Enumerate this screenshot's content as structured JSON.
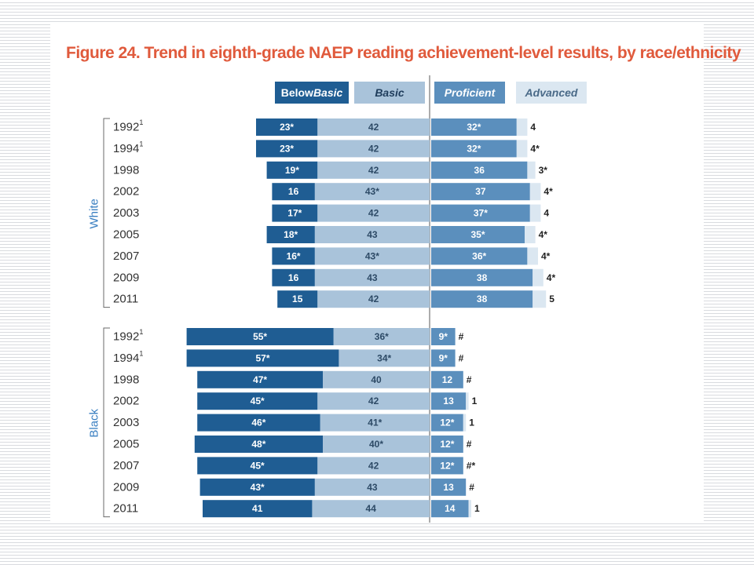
{
  "title": {
    "figure_number": "Figure 24.",
    "text": "Trend in eighth-grade NAEP reading achievement-level results, by race/ethnicity"
  },
  "legend": [
    {
      "key": "below_basic",
      "plain": "Below ",
      "italic": "Basic",
      "bg": "#1f5d93",
      "fg": "#ffffff"
    },
    {
      "key": "basic",
      "plain": "",
      "italic": "Basic",
      "bg": "#a9c3da",
      "fg": "#1f3d5c"
    },
    {
      "key": "proficient",
      "plain": "",
      "italic": "Proficient",
      "bg": "#5b8fbd",
      "fg": "#ffffff"
    },
    {
      "key": "advanced",
      "plain": "",
      "italic": "Advanced",
      "bg": "#dbe7f1",
      "fg": "#4a6a88"
    }
  ],
  "colors": {
    "below_basic": "#1f5d93",
    "basic": "#a9c3da",
    "proficient": "#5b8fbd",
    "advanced": "#dbe7f1",
    "group_label": "#3a7fc1",
    "title": "#e05a3c"
  },
  "chart_data": {
    "type": "bar",
    "orientation": "horizontal",
    "stacked": "diverging",
    "title": "Trend in eighth-grade NAEP reading achievement-level results, by race/ethnicity",
    "series_names": [
      "Below Basic",
      "Basic",
      "Proficient",
      "Advanced"
    ],
    "groups": [
      {
        "name": "White",
        "rows": [
          {
            "year": "1992",
            "sup": "1",
            "below": 23,
            "below_label": "23*",
            "basic": 42,
            "basic_label": "42",
            "prof": 32,
            "prof_label": "32*",
            "adv": 4,
            "adv_label": "4"
          },
          {
            "year": "1994",
            "sup": "1",
            "below": 23,
            "below_label": "23*",
            "basic": 42,
            "basic_label": "42",
            "prof": 32,
            "prof_label": "32*",
            "adv": 4,
            "adv_label": "4*"
          },
          {
            "year": "1998",
            "sup": "",
            "below": 19,
            "below_label": "19*",
            "basic": 42,
            "basic_label": "42",
            "prof": 36,
            "prof_label": "36",
            "adv": 3,
            "adv_label": "3*"
          },
          {
            "year": "2002",
            "sup": "",
            "below": 16,
            "below_label": "16",
            "basic": 43,
            "basic_label": "43*",
            "prof": 37,
            "prof_label": "37",
            "adv": 4,
            "adv_label": "4*"
          },
          {
            "year": "2003",
            "sup": "",
            "below": 17,
            "below_label": "17*",
            "basic": 42,
            "basic_label": "42",
            "prof": 37,
            "prof_label": "37*",
            "adv": 4,
            "adv_label": "4"
          },
          {
            "year": "2005",
            "sup": "",
            "below": 18,
            "below_label": "18*",
            "basic": 43,
            "basic_label": "43",
            "prof": 35,
            "prof_label": "35*",
            "adv": 4,
            "adv_label": "4*"
          },
          {
            "year": "2007",
            "sup": "",
            "below": 16,
            "below_label": "16*",
            "basic": 43,
            "basic_label": "43*",
            "prof": 36,
            "prof_label": "36*",
            "adv": 4,
            "adv_label": "4*"
          },
          {
            "year": "2009",
            "sup": "",
            "below": 16,
            "below_label": "16",
            "basic": 43,
            "basic_label": "43",
            "prof": 38,
            "prof_label": "38",
            "adv": 4,
            "adv_label": "4*"
          },
          {
            "year": "2011",
            "sup": "",
            "below": 15,
            "below_label": "15",
            "basic": 42,
            "basic_label": "42",
            "prof": 38,
            "prof_label": "38",
            "adv": 5,
            "adv_label": "5"
          }
        ]
      },
      {
        "name": "Black",
        "rows": [
          {
            "year": "1992",
            "sup": "1",
            "below": 55,
            "below_label": "55*",
            "basic": 36,
            "basic_label": "36*",
            "prof": 9,
            "prof_label": "9*",
            "adv": 0,
            "adv_label": "#"
          },
          {
            "year": "1994",
            "sup": "1",
            "below": 57,
            "below_label": "57*",
            "basic": 34,
            "basic_label": "34*",
            "prof": 9,
            "prof_label": "9*",
            "adv": 0,
            "adv_label": "#"
          },
          {
            "year": "1998",
            "sup": "",
            "below": 47,
            "below_label": "47*",
            "basic": 40,
            "basic_label": "40",
            "prof": 12,
            "prof_label": "12",
            "adv": 0,
            "adv_label": "#"
          },
          {
            "year": "2002",
            "sup": "",
            "below": 45,
            "below_label": "45*",
            "basic": 42,
            "basic_label": "42",
            "prof": 13,
            "prof_label": "13",
            "adv": 1,
            "adv_label": "1"
          },
          {
            "year": "2003",
            "sup": "",
            "below": 46,
            "below_label": "46*",
            "basic": 41,
            "basic_label": "41*",
            "prof": 12,
            "prof_label": "12*",
            "adv": 1,
            "adv_label": "1"
          },
          {
            "year": "2005",
            "sup": "",
            "below": 48,
            "below_label": "48*",
            "basic": 40,
            "basic_label": "40*",
            "prof": 12,
            "prof_label": "12*",
            "adv": 0,
            "adv_label": "#"
          },
          {
            "year": "2007",
            "sup": "",
            "below": 45,
            "below_label": "45*",
            "basic": 42,
            "basic_label": "42",
            "prof": 12,
            "prof_label": "12*",
            "adv": 0,
            "adv_label": "#*"
          },
          {
            "year": "2009",
            "sup": "",
            "below": 43,
            "below_label": "43*",
            "basic": 43,
            "basic_label": "43",
            "prof": 13,
            "prof_label": "13",
            "adv": 0,
            "adv_label": "#"
          },
          {
            "year": "2011",
            "sup": "",
            "below": 41,
            "below_label": "41",
            "basic": 44,
            "basic_label": "44",
            "prof": 14,
            "prof_label": "14",
            "adv": 1,
            "adv_label": "1"
          }
        ]
      }
    ]
  }
}
